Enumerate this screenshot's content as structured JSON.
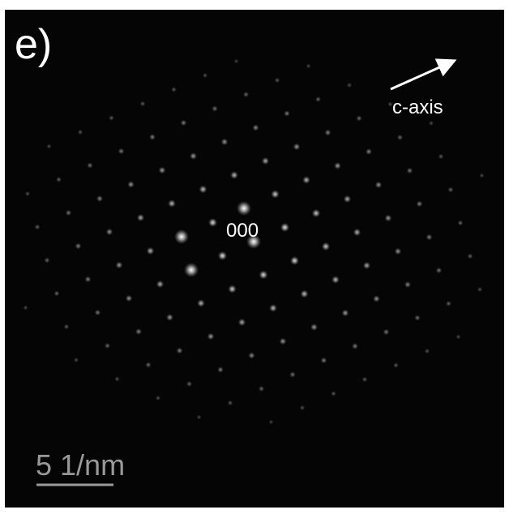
{
  "panel_label": "e)",
  "axis_label": "c-axis",
  "center_label": "000",
  "scale_bar_label": "5 1/nm"
}
